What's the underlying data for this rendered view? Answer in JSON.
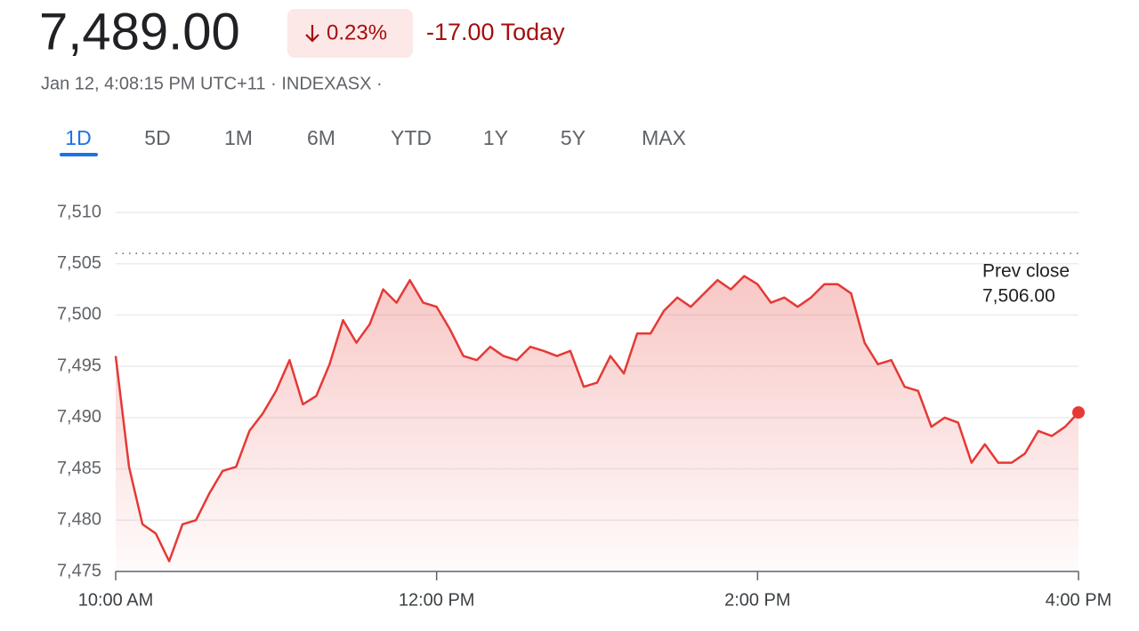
{
  "header": {
    "price": "7,489.00",
    "change_percent": "0.23%",
    "change_today": "-17.00 Today",
    "subtitle": "Jan 12, 4:08:15 PM UTC+11 · INDEXASX ·"
  },
  "tabs": {
    "items": [
      "1D",
      "5D",
      "1M",
      "6M",
      "YTD",
      "1Y",
      "5Y",
      "MAX"
    ],
    "active": "1D"
  },
  "chart_data": {
    "type": "line",
    "x": [
      "10:00 AM",
      "10:05 AM",
      "10:10 AM",
      "10:15 AM",
      "10:20 AM",
      "10:25 AM",
      "10:30 AM",
      "10:35 AM",
      "10:40 AM",
      "10:45 AM",
      "10:50 AM",
      "10:55 AM",
      "11:00 AM",
      "11:05 AM",
      "11:10 AM",
      "11:15 AM",
      "11:20 AM",
      "11:25 AM",
      "11:30 AM",
      "11:35 AM",
      "11:40 AM",
      "11:45 AM",
      "11:50 AM",
      "11:55 AM",
      "12:00 PM",
      "12:05 PM",
      "12:10 PM",
      "12:15 PM",
      "12:20 PM",
      "12:25 PM",
      "12:30 PM",
      "12:35 PM",
      "12:40 PM",
      "12:45 PM",
      "12:50 PM",
      "12:55 PM",
      "1:00 PM",
      "1:05 PM",
      "1:10 PM",
      "1:15 PM",
      "1:20 PM",
      "1:25 PM",
      "1:30 PM",
      "1:35 PM",
      "1:40 PM",
      "1:45 PM",
      "1:50 PM",
      "1:55 PM",
      "2:00 PM",
      "2:05 PM",
      "2:10 PM",
      "2:15 PM",
      "2:20 PM",
      "2:25 PM",
      "2:30 PM",
      "2:35 PM",
      "2:40 PM",
      "2:45 PM",
      "2:50 PM",
      "2:55 PM",
      "3:00 PM",
      "3:05 PM",
      "3:10 PM",
      "3:15 PM",
      "3:20 PM",
      "3:25 PM",
      "3:30 PM",
      "3:35 PM",
      "3:40 PM",
      "3:45 PM",
      "3:50 PM",
      "3:55 PM",
      "4:00 PM"
    ],
    "series": [
      {
        "name": "INDEXASX",
        "color": "#e53935",
        "values": [
          7496.0,
          7485.2,
          7479.6,
          7478.7,
          7476.0,
          7479.6,
          7480.0,
          7482.6,
          7484.8,
          7485.2,
          7488.7,
          7490.4,
          7492.6,
          7495.6,
          7491.3,
          7492.1,
          7495.2,
          7499.5,
          7497.3,
          7499.1,
          7502.5,
          7501.2,
          7503.4,
          7501.2,
          7500.8,
          7498.6,
          7496.0,
          7495.6,
          7496.9,
          7496.0,
          7495.6,
          7496.9,
          7496.5,
          7496.0,
          7496.5,
          7493.0,
          7493.4,
          7496.0,
          7494.3,
          7498.2,
          7498.2,
          7500.4,
          7501.7,
          7500.8,
          7502.1,
          7503.4,
          7502.5,
          7503.8,
          7503.0,
          7501.2,
          7501.7,
          7500.8,
          7501.7,
          7503.0,
          7503.0,
          7502.1,
          7497.3,
          7495.2,
          7495.6,
          7493.0,
          7492.6,
          7489.1,
          7490.0,
          7489.5,
          7485.6,
          7487.4,
          7485.6,
          7485.6,
          7486.5,
          7488.7,
          7488.2,
          7489.1,
          7490.5
        ]
      }
    ],
    "xlim": [
      "10:00 AM",
      "4:00 PM"
    ],
    "xticks": [
      "10:00 AM",
      "12:00 PM",
      "2:00 PM",
      "4:00 PM"
    ],
    "ylim": [
      7475,
      7510
    ],
    "yticks": [
      {
        "value": 7475,
        "label": "7,475"
      },
      {
        "value": 7480,
        "label": "7,480"
      },
      {
        "value": 7485,
        "label": "7,485"
      },
      {
        "value": 7490,
        "label": "7,490"
      },
      {
        "value": 7495,
        "label": "7,495"
      },
      {
        "value": 7500,
        "label": "7,500"
      },
      {
        "value": 7505,
        "label": "7,505"
      },
      {
        "value": 7510,
        "label": "7,510"
      }
    ],
    "grid": true,
    "reference_line": {
      "name": "Prev close",
      "value": 7506,
      "label": "7,506.00"
    }
  }
}
